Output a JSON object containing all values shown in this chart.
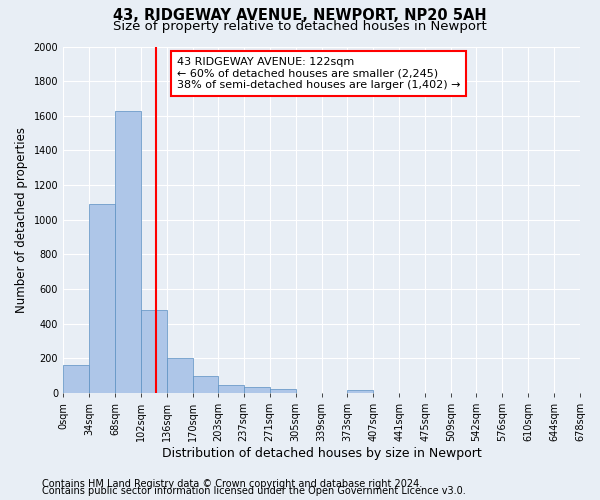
{
  "title": "43, RIDGEWAY AVENUE, NEWPORT, NP20 5AH",
  "subtitle": "Size of property relative to detached houses in Newport",
  "xlabel": "Distribution of detached houses by size in Newport",
  "ylabel": "Number of detached properties",
  "footnote1": "Contains HM Land Registry data © Crown copyright and database right 2024.",
  "footnote2": "Contains public sector information licensed under the Open Government Licence v3.0.",
  "property_label": "43 RIDGEWAY AVENUE: 122sqm",
  "annotation_line1": "← 60% of detached houses are smaller (2,245)",
  "annotation_line2": "38% of semi-detached houses are larger (1,402) →",
  "property_value": 122,
  "bar_edges": [
    0,
    34,
    68,
    102,
    136,
    170,
    203,
    237,
    271,
    305,
    339,
    373,
    407,
    441,
    475,
    509,
    542,
    576,
    610,
    644,
    678
  ],
  "bar_heights": [
    160,
    1090,
    1630,
    480,
    200,
    100,
    45,
    35,
    22,
    0,
    0,
    20,
    0,
    0,
    0,
    0,
    0,
    0,
    0,
    0
  ],
  "bar_color": "#aec6e8",
  "bar_edge_color": "#5a8fc2",
  "bar_linewidth": 0.5,
  "vline_color": "red",
  "vline_x": 122,
  "ylim": [
    0,
    2000
  ],
  "yticks": [
    0,
    200,
    400,
    600,
    800,
    1000,
    1200,
    1400,
    1600,
    1800,
    2000
  ],
  "background_color": "#e8eef5",
  "plot_bg_color": "#e8eef5",
  "grid_color": "#ffffff",
  "title_fontsize": 10.5,
  "subtitle_fontsize": 9.5,
  "xlabel_fontsize": 9,
  "ylabel_fontsize": 8.5,
  "tick_fontsize": 7,
  "annotation_fontsize": 8,
  "footnote_fontsize": 7
}
